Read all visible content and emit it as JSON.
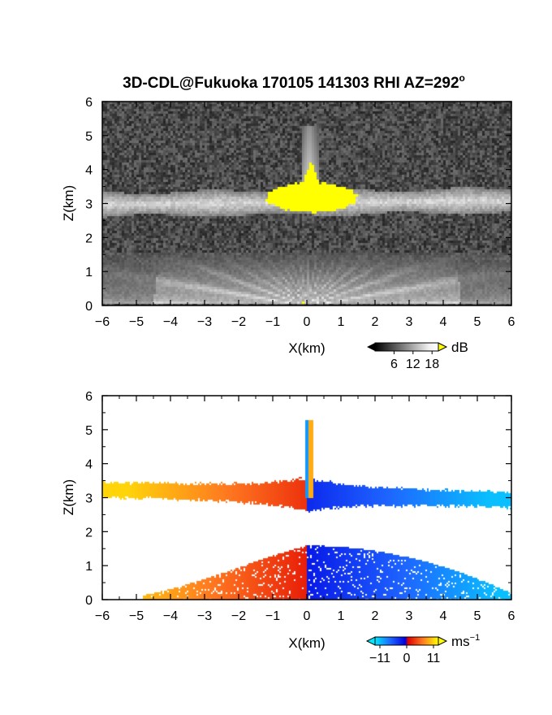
{
  "title": "3D-CDL@Fukuoka 170105 141303 RHI AZ=292",
  "title_suffix": "o",
  "chart_data": [
    {
      "type": "heatmap",
      "panel": "reflectivity",
      "xlabel": "X(km)",
      "ylabel": "Z(km)",
      "xlim": [
        -6,
        6
      ],
      "ylim": [
        0,
        6
      ],
      "x_ticks": [
        -6,
        -5,
        -4,
        -3,
        -2,
        -1,
        0,
        1,
        2,
        3,
        4,
        5,
        6
      ],
      "y_ticks": [
        0,
        1,
        2,
        3,
        4,
        5,
        6
      ],
      "colorbar": {
        "label": "dB",
        "ticks": [
          6,
          12,
          18
        ],
        "range": [
          0,
          20
        ]
      },
      "features": {
        "layer_center_km": 3.05,
        "layer_half_thickness_km": 0.35,
        "saturated_core": {
          "x_range": [
            -1.3,
            1.5
          ],
          "z_range": [
            2.6,
            4.3
          ],
          "value": 20
        },
        "spike_top_km": 5.3
      }
    },
    {
      "type": "heatmap",
      "panel": "doppler_velocity",
      "xlabel": "X(km)",
      "ylabel": "Z(km)",
      "xlim": [
        -6,
        6
      ],
      "ylim": [
        0,
        6
      ],
      "x_ticks": [
        -6,
        -5,
        -4,
        -3,
        -2,
        -1,
        0,
        1,
        2,
        3,
        4,
        5,
        6
      ],
      "y_ticks": [
        0,
        1,
        2,
        3,
        4,
        5,
        6
      ],
      "colorbar": {
        "label": "ms",
        "label_exp": "−1",
        "ticks": [
          -11,
          0,
          11
        ],
        "tick_labels": [
          "−11",
          "0",
          "11"
        ],
        "range": [
          -13,
          13
        ]
      },
      "features": {
        "upper_layer_center_km": 3.1,
        "lower_layer_top_km": 1.6,
        "velocity_max_ms": 11
      }
    }
  ]
}
